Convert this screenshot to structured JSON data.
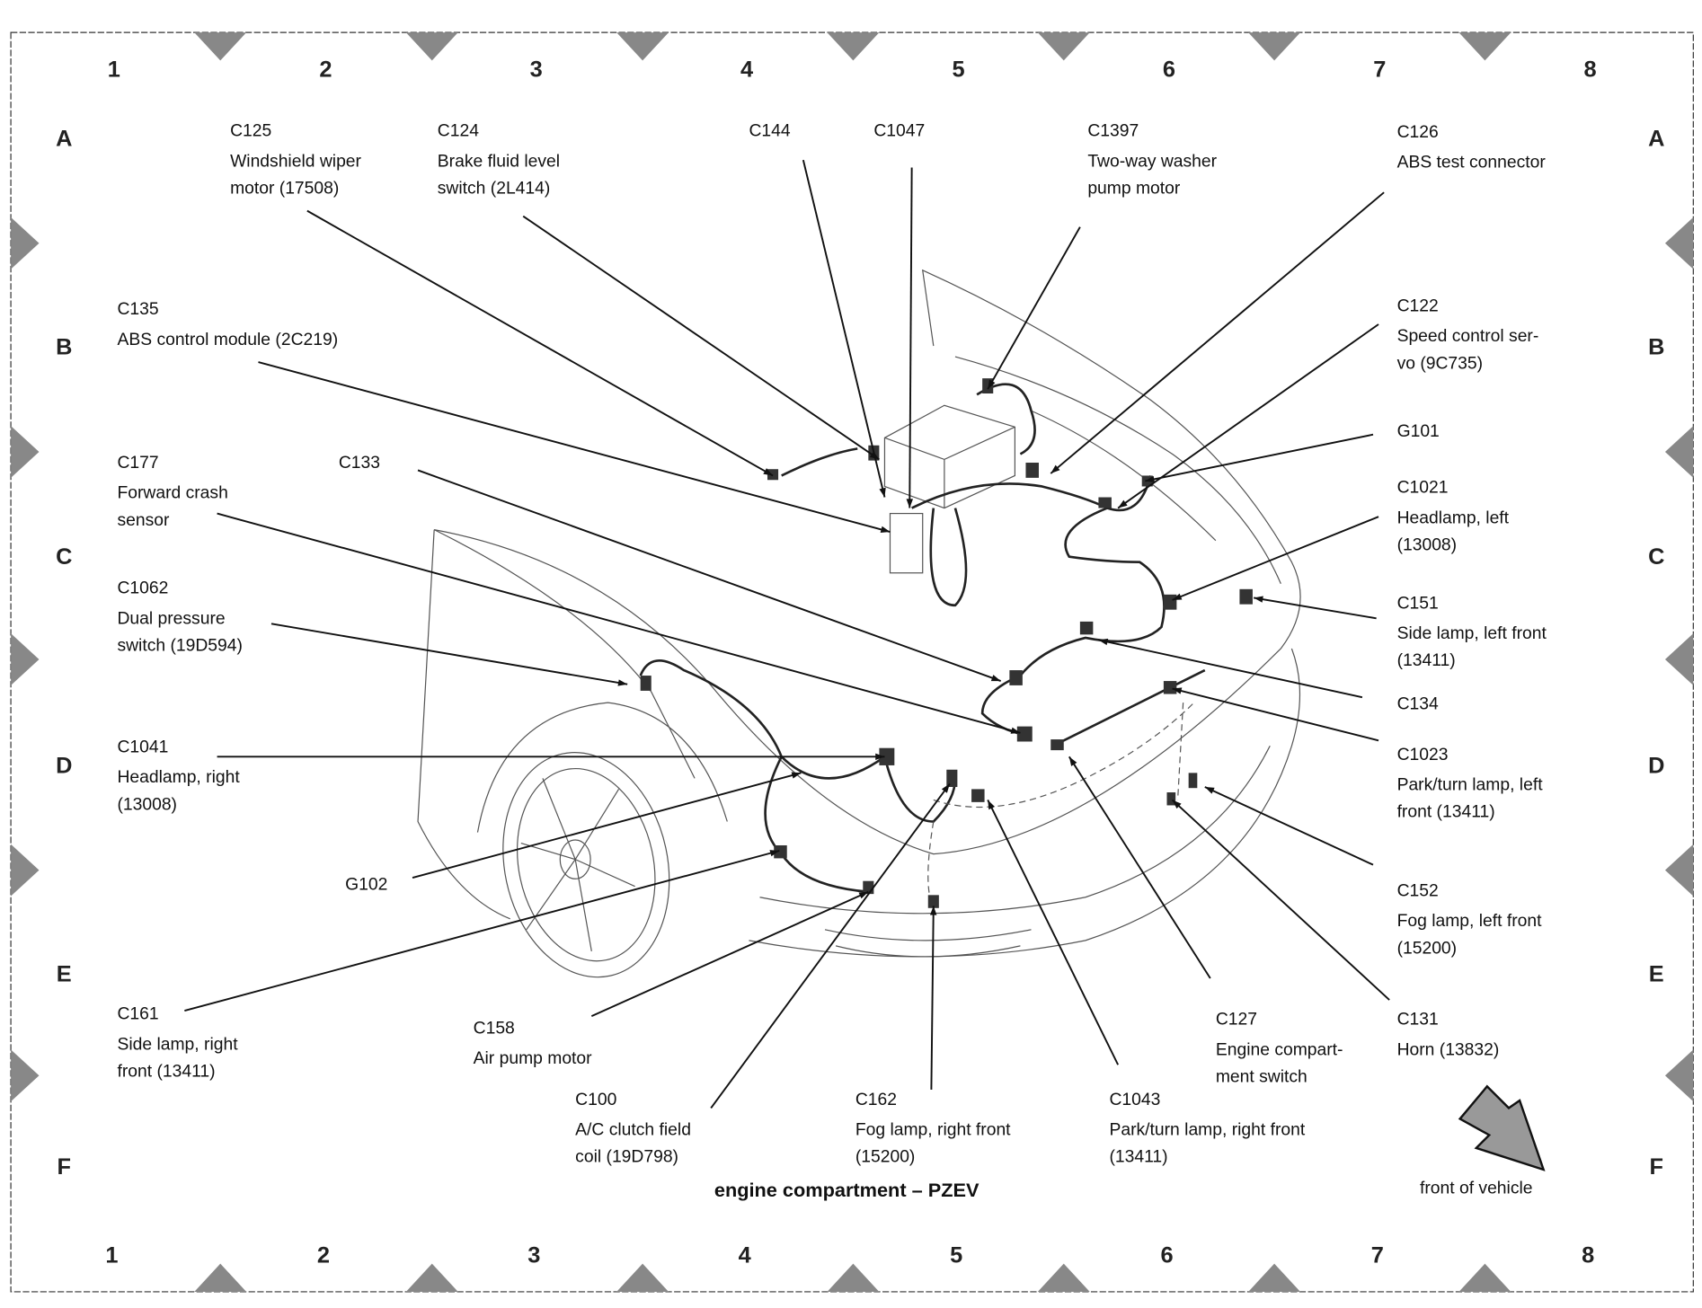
{
  "diagram": {
    "title": "engine compartment – PZEV",
    "direction_label": "front of vehicle",
    "grid_columns": [
      "1",
      "2",
      "3",
      "4",
      "5",
      "6",
      "7",
      "8"
    ],
    "grid_rows": [
      "A",
      "B",
      "C",
      "D",
      "E",
      "F"
    ],
    "callouts": [
      {
        "id": "C125",
        "desc": [
          "Windshield wiper",
          "motor (17508)"
        ]
      },
      {
        "id": "C124",
        "desc": [
          "Brake fluid level",
          "switch (2L414)"
        ]
      },
      {
        "id": "C144",
        "desc": []
      },
      {
        "id": "C1047",
        "desc": []
      },
      {
        "id": "C1397",
        "desc": [
          "Two-way washer",
          "pump motor"
        ]
      },
      {
        "id": "C126",
        "desc": [
          "ABS test connector"
        ]
      },
      {
        "id": "C135",
        "desc": [
          "ABS control module (2C219)"
        ]
      },
      {
        "id": "C122",
        "desc": [
          "Speed control ser-",
          "vo (9C735)"
        ]
      },
      {
        "id": "G101",
        "desc": []
      },
      {
        "id": "C177",
        "desc": [
          "Forward crash",
          "sensor"
        ]
      },
      {
        "id": "C133",
        "desc": []
      },
      {
        "id": "C1021",
        "desc": [
          "Headlamp, left",
          "(13008)"
        ]
      },
      {
        "id": "C1062",
        "desc": [
          "Dual pressure",
          "switch (19D594)"
        ]
      },
      {
        "id": "C151",
        "desc": [
          "Side lamp, left front",
          "(13411)"
        ]
      },
      {
        "id": "C134",
        "desc": []
      },
      {
        "id": "C1041",
        "desc": [
          "Headlamp, right",
          "(13008)"
        ]
      },
      {
        "id": "C1023",
        "desc": [
          "Park/turn lamp, left",
          "front (13411)"
        ]
      },
      {
        "id": "G102",
        "desc": []
      },
      {
        "id": "C161",
        "desc": [
          "Side lamp, right",
          "front (13411)"
        ]
      },
      {
        "id": "C152",
        "desc": [
          "Fog lamp, left front",
          "(15200)"
        ]
      },
      {
        "id": "C158",
        "desc": [
          "Air pump motor"
        ]
      },
      {
        "id": "C127",
        "desc": [
          "Engine compart-",
          "ment switch"
        ]
      },
      {
        "id": "C131",
        "desc": [
          "Horn (13832)"
        ]
      },
      {
        "id": "C100",
        "desc": [
          "A/C clutch field",
          "coil (19D798)"
        ]
      },
      {
        "id": "C162",
        "desc": [
          "Fog lamp, right front",
          "(15200)"
        ]
      },
      {
        "id": "C1043",
        "desc": [
          "Park/turn lamp, right front",
          "(13411)"
        ]
      }
    ]
  }
}
